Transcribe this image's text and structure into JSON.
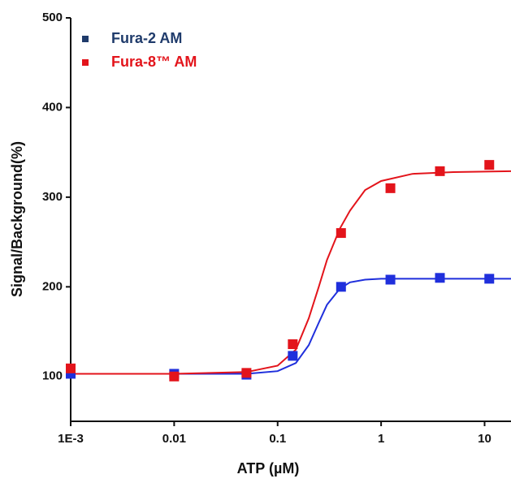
{
  "chart_data": {
    "type": "scatter",
    "xlabel": "ATP (µM)",
    "ylabel": "Signal/Background(%)",
    "xscale": "log",
    "xlim": [
      0.001,
      18
    ],
    "xticks": [
      {
        "value": 0.001,
        "label": "1E-3"
      },
      0.01,
      0.1,
      1,
      10
    ],
    "ylim": [
      50,
      500
    ],
    "yticks": [
      100,
      200,
      300,
      400,
      500
    ],
    "legend": "upper left",
    "series": [
      {
        "name": "Fura-2 AM",
        "color": "#1f2fdc",
        "legend_color": "#1f3b6b",
        "x": [
          0.001,
          0.01,
          0.05,
          0.14,
          0.41,
          1.23,
          3.7,
          11.1
        ],
        "values": [
          103,
          103,
          102,
          123,
          200,
          208,
          210,
          209
        ]
      },
      {
        "name": "Fura-8™ AM",
        "color": "#e3141b",
        "legend_color": "#e3141b",
        "x": [
          0.001,
          0.01,
          0.05,
          0.14,
          0.41,
          1.23,
          3.7,
          11.1
        ],
        "values": [
          109,
          100,
          104,
          136,
          260,
          310,
          329,
          336
        ]
      }
    ],
    "curves": [
      {
        "color": "#1f2fdc",
        "x": [
          0.001,
          0.01,
          0.05,
          0.1,
          0.15,
          0.2,
          0.25,
          0.3,
          0.4,
          0.5,
          0.7,
          1,
          2,
          5,
          18
        ],
        "values": [
          103,
          103,
          103,
          106,
          115,
          135,
          160,
          180,
          198,
          205,
          208,
          209,
          209,
          209,
          209
        ]
      },
      {
        "color": "#e3141b",
        "x": [
          0.001,
          0.01,
          0.05,
          0.1,
          0.15,
          0.2,
          0.25,
          0.3,
          0.4,
          0.5,
          0.7,
          1,
          2,
          5,
          18
        ],
        "values": [
          103,
          103,
          105,
          112,
          130,
          165,
          200,
          230,
          265,
          285,
          308,
          318,
          326,
          328,
          329
        ]
      }
    ]
  }
}
